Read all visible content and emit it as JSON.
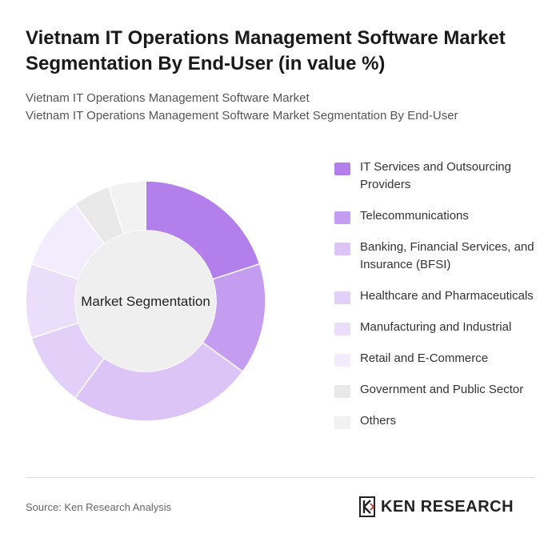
{
  "header": {
    "title": "Vietnam IT Operations Management Software Market Segmentation By End-User (in value %)",
    "subtitle_line1": "Vietnam IT Operations Management Software Market",
    "subtitle_line2": "Vietnam IT Operations Management Software Market Segmentation By End-User"
  },
  "chart_data": {
    "type": "pie",
    "center_label": "Market Segmentation",
    "categories": [
      "IT Services and Outsourcing Providers",
      "Telecommunications",
      "Banking, Financial Services, and Insurance (BFSI)",
      "Healthcare and Pharmaceuticals",
      "Manufacturing and Industrial",
      "Retail and E-Commerce",
      "Government and Public Sector",
      "Others"
    ],
    "values": [
      20,
      15,
      25,
      10,
      10,
      10,
      5,
      5
    ],
    "colors": [
      "#b37fea",
      "#c59df0",
      "#dcc4f7",
      "#e3d0f8",
      "#ebdefb",
      "#f3ecfc",
      "#e9e9e9",
      "#f2f2f2"
    ],
    "legend_position": "right"
  },
  "footer": {
    "source": "Source: Ken Research Analysis",
    "brand": "KEN RESEARCH"
  }
}
